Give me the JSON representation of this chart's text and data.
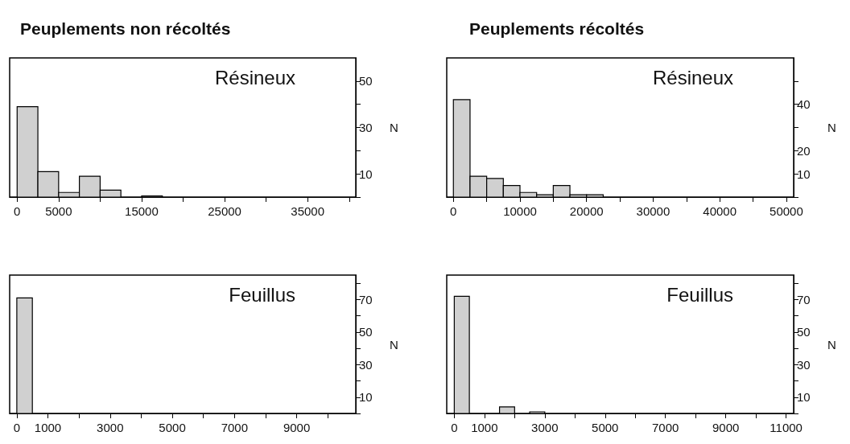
{
  "chart_data": [
    {
      "type": "histogram",
      "title": "Peuplements non récoltés",
      "ylabel": "N",
      "annotations": [
        "Résineux"
      ],
      "color": "#d0d0d0",
      "bins": [
        0,
        2500,
        5000,
        7500,
        10000,
        12500,
        15000,
        17500,
        20000,
        22500,
        25000,
        27500,
        30000,
        32500,
        35000,
        37500,
        40000
      ],
      "values": [
        39,
        11,
        2,
        9,
        3,
        0,
        0.5,
        0,
        0,
        0,
        0,
        0,
        0,
        0,
        0,
        0
      ],
      "xlim": [
        -900,
        40800
      ],
      "xticks": [
        0,
        5000,
        {
          "value": 10000,
          "label": null
        },
        15000,
        {
          "value": 20000,
          "label": null
        },
        25000,
        {
          "value": 30000,
          "label": null
        },
        35000,
        {
          "value": 40000,
          "label": null
        }
      ],
      "ylim": [
        0,
        60
      ],
      "yticks": [
        {
          "value": 0,
          "label": null
        },
        10,
        {
          "value": 20,
          "label": null
        },
        30,
        {
          "value": 40,
          "label": null
        },
        50
      ]
    },
    {
      "type": "histogram",
      "title": "Peuplements récoltés",
      "ylabel": "N",
      "annotations": [
        "Résineux"
      ],
      "color": "#d0d0d0",
      "bins": [
        0,
        2500,
        5000,
        7500,
        10000,
        12500,
        15000,
        17500,
        20000,
        22500,
        25000,
        27500,
        30000,
        32500,
        35000,
        37500,
        40000,
        42500,
        45000,
        47500,
        50000
      ],
      "values": [
        42,
        9,
        8,
        5,
        2,
        1,
        5,
        1,
        1,
        0,
        0,
        0,
        0,
        0,
        0,
        0,
        0,
        0,
        0,
        0
      ],
      "xlim": [
        -1000,
        51100
      ],
      "xticks": [
        0,
        {
          "value": 5000,
          "label": null
        },
        10000,
        {
          "value": 15000,
          "label": null
        },
        20000,
        {
          "value": 25000,
          "label": null
        },
        30000,
        {
          "value": 35000,
          "label": null
        },
        40000,
        {
          "value": 45000,
          "label": null
        },
        50000
      ],
      "ylim": [
        0,
        60
      ],
      "yticks": [
        {
          "value": 0,
          "label": null
        },
        10,
        20,
        {
          "value": 30,
          "label": null
        },
        40,
        {
          "value": 50,
          "label": null
        }
      ]
    },
    {
      "type": "histogram",
      "ylabel": "N",
      "annotations": [
        "Feuillus"
      ],
      "color": "#d0d0d0",
      "bins": [
        0,
        500,
        1000,
        1500,
        2000,
        2500,
        3000,
        3500,
        4000,
        4500,
        5000,
        5500,
        6000,
        6500,
        7000,
        7500,
        8000,
        8500,
        9000,
        9500,
        10000
      ],
      "values": [
        71,
        0,
        0,
        0,
        0,
        0,
        0,
        0,
        0,
        0,
        0,
        0,
        0,
        0,
        0,
        0,
        0,
        0,
        0,
        0
      ],
      "xlim": [
        -230,
        10900
      ],
      "xticks": [
        0,
        1000,
        {
          "value": 2000,
          "label": null
        },
        3000,
        {
          "value": 4000,
          "label": null
        },
        5000,
        {
          "value": 6000,
          "label": null
        },
        7000,
        {
          "value": 8000,
          "label": null
        },
        9000,
        {
          "value": 10000,
          "label": null
        }
      ],
      "ylim": [
        0,
        85
      ],
      "yticks": [
        {
          "value": 0,
          "label": null
        },
        10,
        {
          "value": 20,
          "label": null
        },
        30,
        {
          "value": 40,
          "label": null
        },
        50,
        {
          "value": 60,
          "label": null
        },
        70,
        {
          "value": 80,
          "label": null
        }
      ]
    },
    {
      "type": "histogram",
      "ylabel": "N",
      "annotations": [
        "Feuillus"
      ],
      "color": "#d0d0d0",
      "bins": [
        0,
        500,
        1000,
        1500,
        2000,
        2500,
        3000,
        3500,
        4000,
        4500,
        5000,
        5500,
        6000,
        6500,
        7000,
        7500,
        8000,
        8500,
        9000,
        9500,
        10000,
        10500,
        11000
      ],
      "values": [
        72,
        0,
        0,
        4,
        0,
        1,
        0,
        0,
        0,
        0,
        0,
        0,
        0,
        0,
        0,
        0,
        0,
        0,
        0,
        0,
        0,
        0
      ],
      "xlim": [
        -250,
        11250
      ],
      "xticks": [
        0,
        1000,
        {
          "value": 2000,
          "label": null
        },
        3000,
        {
          "value": 4000,
          "label": null
        },
        5000,
        {
          "value": 6000,
          "label": null
        },
        7000,
        {
          "value": 8000,
          "label": null
        },
        9000,
        {
          "value": 10000,
          "label": null
        },
        11000
      ],
      "ylim": [
        0,
        85
      ],
      "yticks": [
        {
          "value": 0,
          "label": null
        },
        10,
        {
          "value": 20,
          "label": null
        },
        30,
        {
          "value": 40,
          "label": null
        },
        50,
        {
          "value": 60,
          "label": null
        },
        70,
        {
          "value": 80,
          "label": null
        }
      ]
    }
  ]
}
